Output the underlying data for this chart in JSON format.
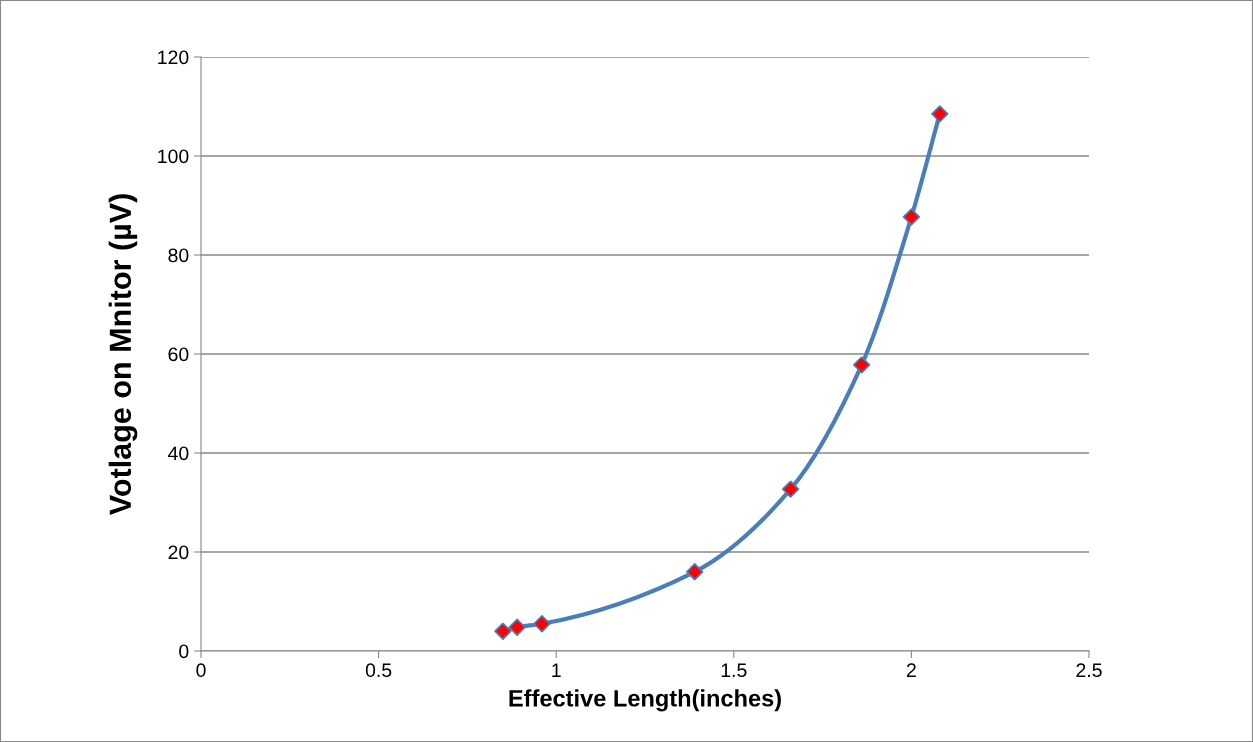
{
  "chart_data": {
    "type": "line",
    "xlabel": "Effective Length(inches)",
    "ylabel": "Votlage on Mnitor (µV)",
    "x": [
      0.85,
      0.89,
      0.96,
      1.39,
      1.66,
      1.86,
      2.0,
      2.08
    ],
    "series": [
      {
        "color": "#4a7ebb",
        "values": [
          4.0,
          4.8,
          5.5,
          16.0,
          32.7,
          57.8,
          87.7,
          108.5
        ],
        "colors": [
          "#ff0000",
          "#ff0000",
          "#ff0000",
          "#ff0000",
          "#ff0000",
          "#ff0000",
          "#ff0000",
          "#ff0000"
        ]
      }
    ],
    "xlim": [
      0,
      2.5
    ],
    "xticks": [
      0,
      0.5,
      1,
      1.5,
      2,
      2.5
    ],
    "ylim": [
      0,
      120
    ],
    "yticks": [
      0,
      20,
      40,
      60,
      80,
      100,
      120
    ],
    "grid": "y",
    "marker": "diamond",
    "line_style": "solid"
  }
}
